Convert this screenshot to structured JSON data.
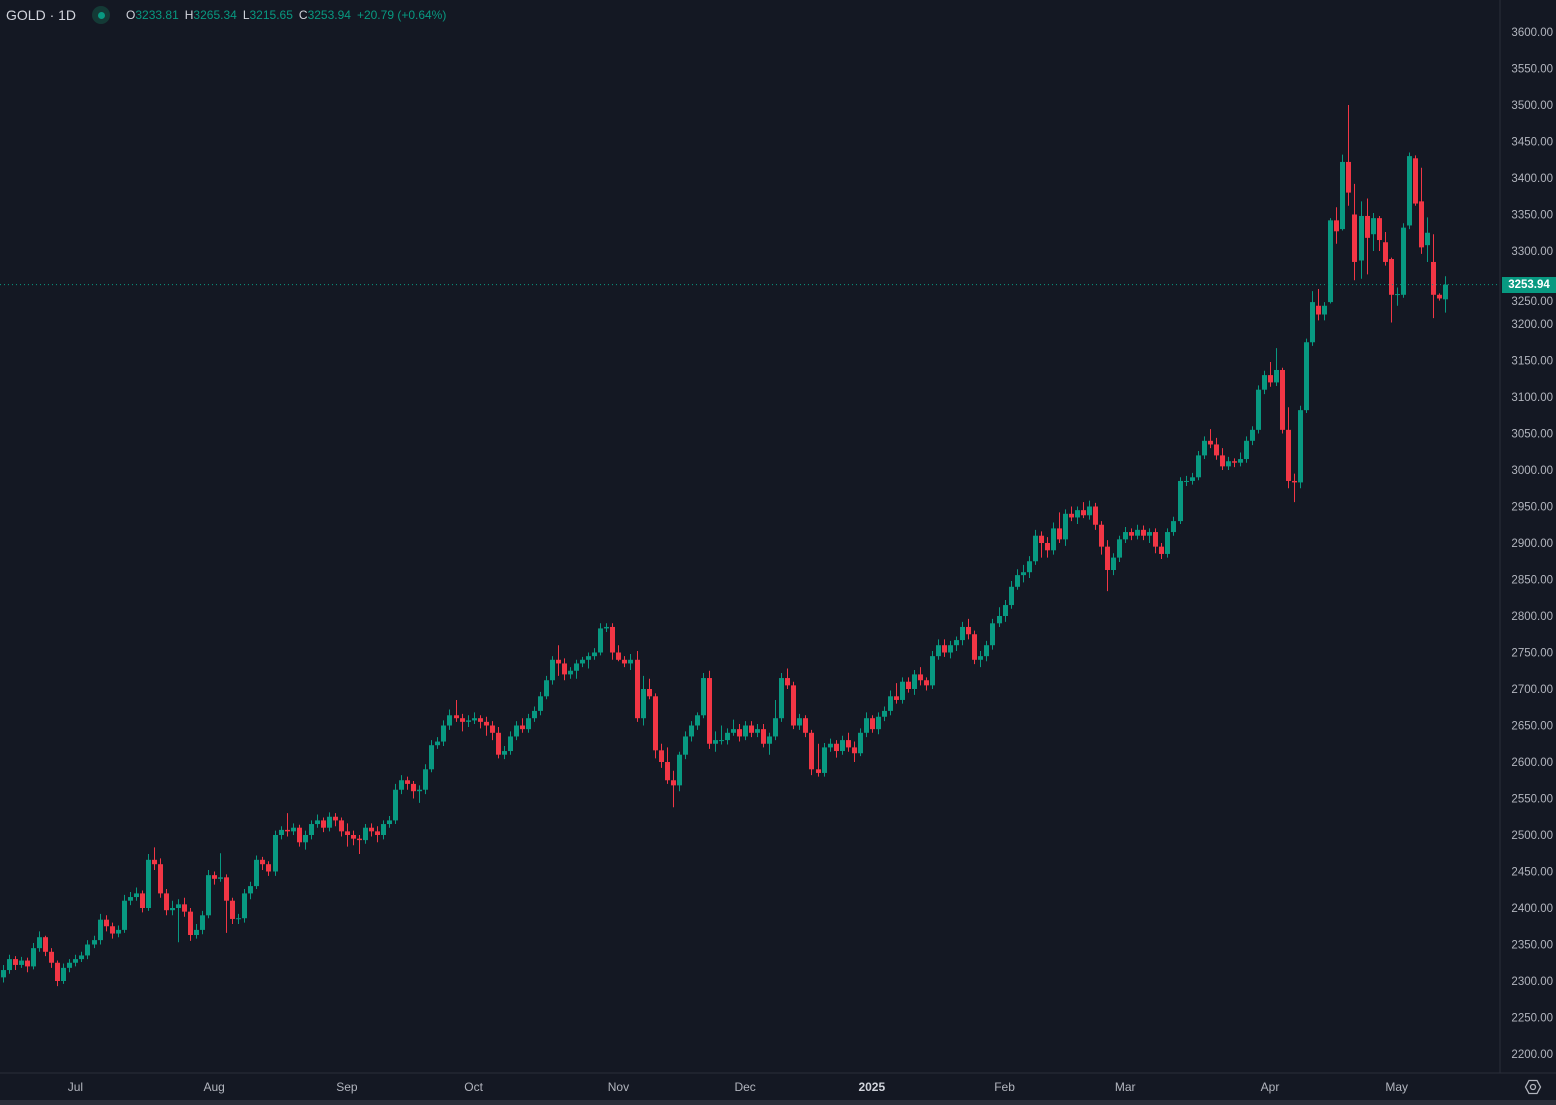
{
  "legend": {
    "symbol": "GOLD · 1D",
    "o_label": "O",
    "open": "3233.81",
    "h_label": "H",
    "high": "3265.34",
    "l_label": "L",
    "low": "3215.65",
    "c_label": "C",
    "close": "3253.94",
    "change": "+20.79 (+0.64%)"
  },
  "current_price": "3253.94",
  "colors": {
    "background": "#141823",
    "up": "#089981",
    "down": "#f23645",
    "axis_text": "#b2b5be"
  },
  "icons": {
    "settings": "gear-icon",
    "status": "market-open-dot-icon"
  },
  "chart_data": {
    "type": "candlestick",
    "title": "GOLD · 1D",
    "ylim": [
      2180,
      3625
    ],
    "y_ticks": [
      "3600.00",
      "3550.00",
      "3500.00",
      "3450.00",
      "3400.00",
      "3350.00",
      "3300.00",
      "3250.00",
      "3200.00",
      "3150.00",
      "3100.00",
      "3050.00",
      "3000.00",
      "2950.00",
      "2900.00",
      "2850.00",
      "2800.00",
      "2750.00",
      "2700.00",
      "2650.00",
      "2600.00",
      "2550.00",
      "2500.00",
      "2450.00",
      "2400.00",
      "2350.00",
      "2300.00",
      "2250.00",
      "2200.00"
    ],
    "x_ticks": [
      {
        "label": "Jul",
        "index": 12
      },
      {
        "label": "Aug",
        "index": 35
      },
      {
        "label": "Sep",
        "index": 57
      },
      {
        "label": "Oct",
        "index": 78
      },
      {
        "label": "Nov",
        "index": 102
      },
      {
        "label": "Dec",
        "index": 123
      },
      {
        "label": "2025",
        "index": 144,
        "bold": true
      },
      {
        "label": "Feb",
        "index": 166
      },
      {
        "label": "Mar",
        "index": 186
      },
      {
        "label": "Apr",
        "index": 210
      },
      {
        "label": "May",
        "index": 231
      }
    ],
    "ohlc_order": [
      "open",
      "high",
      "low",
      "close"
    ],
    "candles": [
      [
        2305,
        2322,
        2298,
        2315
      ],
      [
        2315,
        2336,
        2310,
        2330
      ],
      [
        2330,
        2334,
        2315,
        2322
      ],
      [
        2322,
        2333,
        2318,
        2328
      ],
      [
        2328,
        2332,
        2312,
        2320
      ],
      [
        2320,
        2352,
        2316,
        2345
      ],
      [
        2345,
        2368,
        2340,
        2360
      ],
      [
        2360,
        2362,
        2334,
        2340
      ],
      [
        2340,
        2345,
        2318,
        2325
      ],
      [
        2325,
        2328,
        2293,
        2300
      ],
      [
        2300,
        2324,
        2296,
        2318
      ],
      [
        2318,
        2330,
        2312,
        2325
      ],
      [
        2325,
        2336,
        2320,
        2330
      ],
      [
        2330,
        2340,
        2326,
        2335
      ],
      [
        2335,
        2356,
        2330,
        2350
      ],
      [
        2350,
        2362,
        2345,
        2356
      ],
      [
        2356,
        2392,
        2350,
        2384
      ],
      [
        2384,
        2390,
        2368,
        2375
      ],
      [
        2375,
        2380,
        2358,
        2365
      ],
      [
        2365,
        2376,
        2360,
        2370
      ],
      [
        2370,
        2418,
        2366,
        2410
      ],
      [
        2410,
        2422,
        2404,
        2415
      ],
      [
        2415,
        2428,
        2410,
        2420
      ],
      [
        2420,
        2424,
        2394,
        2400
      ],
      [
        2400,
        2474,
        2396,
        2466
      ],
      [
        2466,
        2483,
        2452,
        2460
      ],
      [
        2460,
        2468,
        2414,
        2420
      ],
      [
        2420,
        2426,
        2390,
        2397
      ],
      [
        2397,
        2410,
        2390,
        2400
      ],
      [
        2400,
        2412,
        2353,
        2405
      ],
      [
        2405,
        2414,
        2388,
        2395
      ],
      [
        2395,
        2400,
        2355,
        2363
      ],
      [
        2363,
        2378,
        2358,
        2370
      ],
      [
        2370,
        2396,
        2364,
        2390
      ],
      [
        2390,
        2452,
        2386,
        2445
      ],
      [
        2445,
        2450,
        2432,
        2440
      ],
      [
        2440,
        2475,
        2436,
        2442
      ],
      [
        2442,
        2446,
        2366,
        2410
      ],
      [
        2410,
        2414,
        2378,
        2385
      ],
      [
        2385,
        2392,
        2378,
        2386
      ],
      [
        2386,
        2426,
        2380,
        2420
      ],
      [
        2420,
        2436,
        2412,
        2430
      ],
      [
        2430,
        2472,
        2426,
        2466
      ],
      [
        2466,
        2470,
        2452,
        2460
      ],
      [
        2460,
        2464,
        2444,
        2450
      ],
      [
        2450,
        2506,
        2444,
        2500
      ],
      [
        2500,
        2512,
        2494,
        2507
      ],
      [
        2507,
        2530,
        2498,
        2505
      ],
      [
        2505,
        2516,
        2500,
        2510
      ],
      [
        2510,
        2514,
        2484,
        2490
      ],
      [
        2490,
        2506,
        2480,
        2500
      ],
      [
        2500,
        2520,
        2494,
        2515
      ],
      [
        2515,
        2528,
        2510,
        2520
      ],
      [
        2520,
        2524,
        2504,
        2510
      ],
      [
        2510,
        2531,
        2505,
        2525
      ],
      [
        2525,
        2530,
        2512,
        2520
      ],
      [
        2520,
        2524,
        2498,
        2505
      ],
      [
        2505,
        2516,
        2484,
        2500
      ],
      [
        2500,
        2506,
        2486,
        2495
      ],
      [
        2495,
        2500,
        2474,
        2493
      ],
      [
        2493,
        2515,
        2488,
        2510
      ],
      [
        2510,
        2516,
        2498,
        2505
      ],
      [
        2505,
        2512,
        2490,
        2500
      ],
      [
        2500,
        2520,
        2494,
        2515
      ],
      [
        2515,
        2526,
        2510,
        2520
      ],
      [
        2520,
        2570,
        2515,
        2562
      ],
      [
        2562,
        2582,
        2556,
        2575
      ],
      [
        2575,
        2580,
        2562,
        2570
      ],
      [
        2570,
        2574,
        2550,
        2560
      ],
      [
        2560,
        2568,
        2544,
        2562
      ],
      [
        2562,
        2597,
        2556,
        2590
      ],
      [
        2590,
        2630,
        2586,
        2623
      ],
      [
        2623,
        2634,
        2618,
        2628
      ],
      [
        2628,
        2657,
        2622,
        2650
      ],
      [
        2650,
        2672,
        2644,
        2664
      ],
      [
        2664,
        2685,
        2655,
        2660
      ],
      [
        2660,
        2666,
        2642,
        2655
      ],
      [
        2655,
        2664,
        2648,
        2657
      ],
      [
        2657,
        2668,
        2652,
        2660
      ],
      [
        2660,
        2664,
        2646,
        2655
      ],
      [
        2655,
        2662,
        2636,
        2650
      ],
      [
        2650,
        2656,
        2630,
        2640
      ],
      [
        2640,
        2648,
        2605,
        2610
      ],
      [
        2610,
        2622,
        2604,
        2615
      ],
      [
        2615,
        2642,
        2610,
        2635
      ],
      [
        2635,
        2656,
        2630,
        2650
      ],
      [
        2650,
        2660,
        2640,
        2645
      ],
      [
        2645,
        2666,
        2640,
        2660
      ],
      [
        2660,
        2676,
        2655,
        2670
      ],
      [
        2670,
        2696,
        2664,
        2690
      ],
      [
        2690,
        2718,
        2686,
        2712
      ],
      [
        2712,
        2745,
        2706,
        2740
      ],
      [
        2740,
        2760,
        2718,
        2735
      ],
      [
        2735,
        2742,
        2712,
        2720
      ],
      [
        2720,
        2730,
        2714,
        2725
      ],
      [
        2725,
        2740,
        2714,
        2735
      ],
      [
        2735,
        2744,
        2730,
        2740
      ],
      [
        2740,
        2750,
        2728,
        2745
      ],
      [
        2745,
        2756,
        2740,
        2750
      ],
      [
        2750,
        2790,
        2746,
        2783
      ],
      [
        2783,
        2790,
        2778,
        2785
      ],
      [
        2785,
        2790,
        2740,
        2750
      ],
      [
        2750,
        2760,
        2738,
        2740
      ],
      [
        2740,
        2745,
        2730,
        2735
      ],
      [
        2735,
        2748,
        2726,
        2740
      ],
      [
        2740,
        2752,
        2655,
        2660
      ],
      [
        2660,
        2718,
        2650,
        2700
      ],
      [
        2700,
        2714,
        2686,
        2690
      ],
      [
        2690,
        2694,
        2605,
        2616
      ],
      [
        2616,
        2625,
        2592,
        2600
      ],
      [
        2600,
        2620,
        2570,
        2575
      ],
      [
        2575,
        2588,
        2538,
        2568
      ],
      [
        2568,
        2614,
        2560,
        2610
      ],
      [
        2610,
        2642,
        2604,
        2635
      ],
      [
        2635,
        2656,
        2628,
        2650
      ],
      [
        2650,
        2668,
        2644,
        2664
      ],
      [
        2664,
        2722,
        2660,
        2715
      ],
      [
        2715,
        2725,
        2618,
        2625
      ],
      [
        2625,
        2642,
        2614,
        2630
      ],
      [
        2630,
        2650,
        2624,
        2630
      ],
      [
        2630,
        2646,
        2624,
        2640
      ],
      [
        2640,
        2658,
        2636,
        2645
      ],
      [
        2645,
        2652,
        2628,
        2635
      ],
      [
        2635,
        2656,
        2630,
        2650
      ],
      [
        2650,
        2656,
        2634,
        2640
      ],
      [
        2640,
        2652,
        2634,
        2645
      ],
      [
        2645,
        2652,
        2620,
        2625
      ],
      [
        2625,
        2640,
        2610,
        2635
      ],
      [
        2635,
        2685,
        2630,
        2660
      ],
      [
        2660,
        2722,
        2655,
        2715
      ],
      [
        2715,
        2728,
        2700,
        2705
      ],
      [
        2705,
        2710,
        2645,
        2650
      ],
      [
        2650,
        2666,
        2644,
        2660
      ],
      [
        2660,
        2664,
        2634,
        2640
      ],
      [
        2640,
        2644,
        2582,
        2590
      ],
      [
        2590,
        2625,
        2580,
        2585
      ],
      [
        2585,
        2626,
        2580,
        2620
      ],
      [
        2620,
        2632,
        2614,
        2625
      ],
      [
        2625,
        2630,
        2606,
        2615
      ],
      [
        2615,
        2636,
        2610,
        2630
      ],
      [
        2630,
        2640,
        2614,
        2620
      ],
      [
        2620,
        2628,
        2600,
        2612
      ],
      [
        2612,
        2646,
        2608,
        2640
      ],
      [
        2640,
        2668,
        2634,
        2660
      ],
      [
        2660,
        2664,
        2640,
        2645
      ],
      [
        2645,
        2668,
        2638,
        2662
      ],
      [
        2662,
        2676,
        2656,
        2670
      ],
      [
        2670,
        2698,
        2664,
        2690
      ],
      [
        2690,
        2708,
        2680,
        2685
      ],
      [
        2685,
        2716,
        2680,
        2710
      ],
      [
        2710,
        2716,
        2695,
        2700
      ],
      [
        2700,
        2726,
        2692,
        2720
      ],
      [
        2720,
        2730,
        2705,
        2712
      ],
      [
        2712,
        2716,
        2698,
        2705
      ],
      [
        2705,
        2752,
        2700,
        2745
      ],
      [
        2745,
        2768,
        2740,
        2760
      ],
      [
        2760,
        2768,
        2744,
        2750
      ],
      [
        2750,
        2766,
        2742,
        2760
      ],
      [
        2760,
        2772,
        2752,
        2767
      ],
      [
        2767,
        2792,
        2760,
        2785
      ],
      [
        2785,
        2796,
        2768,
        2775
      ],
      [
        2775,
        2780,
        2734,
        2740
      ],
      [
        2740,
        2752,
        2730,
        2745
      ],
      [
        2745,
        2766,
        2738,
        2760
      ],
      [
        2760,
        2796,
        2754,
        2790
      ],
      [
        2790,
        2812,
        2785,
        2800
      ],
      [
        2800,
        2822,
        2792,
        2815
      ],
      [
        2815,
        2848,
        2810,
        2840
      ],
      [
        2840,
        2864,
        2836,
        2856
      ],
      [
        2856,
        2870,
        2846,
        2860
      ],
      [
        2860,
        2882,
        2852,
        2875
      ],
      [
        2875,
        2918,
        2870,
        2910
      ],
      [
        2910,
        2916,
        2880,
        2900
      ],
      [
        2900,
        2908,
        2880,
        2890
      ],
      [
        2890,
        2928,
        2884,
        2920
      ],
      [
        2920,
        2942,
        2900,
        2905
      ],
      [
        2905,
        2946,
        2896,
        2940
      ],
      [
        2940,
        2950,
        2930,
        2935
      ],
      [
        2935,
        2950,
        2926,
        2945
      ],
      [
        2945,
        2956,
        2934,
        2938
      ],
      [
        2938,
        2958,
        2932,
        2950
      ],
      [
        2950,
        2955,
        2918,
        2925
      ],
      [
        2925,
        2930,
        2884,
        2895
      ],
      [
        2895,
        2904,
        2834,
        2863
      ],
      [
        2863,
        2886,
        2856,
        2880
      ],
      [
        2880,
        2910,
        2874,
        2905
      ],
      [
        2905,
        2922,
        2900,
        2915
      ],
      [
        2915,
        2920,
        2904,
        2910
      ],
      [
        2910,
        2925,
        2905,
        2918
      ],
      [
        2918,
        2924,
        2904,
        2910
      ],
      [
        2910,
        2920,
        2900,
        2915
      ],
      [
        2915,
        2920,
        2886,
        2895
      ],
      [
        2895,
        2900,
        2878,
        2885
      ],
      [
        2885,
        2920,
        2880,
        2915
      ],
      [
        2915,
        2936,
        2910,
        2930
      ],
      [
        2930,
        2990,
        2926,
        2985
      ],
      [
        2985,
        2992,
        2978,
        2985
      ],
      [
        2985,
        2996,
        2980,
        2990
      ],
      [
        2990,
        3026,
        2986,
        3020
      ],
      [
        3020,
        3046,
        3015,
        3040
      ],
      [
        3040,
        3056,
        3030,
        3035
      ],
      [
        3035,
        3044,
        3014,
        3020
      ],
      [
        3020,
        3030,
        3000,
        3005
      ],
      [
        3005,
        3018,
        3000,
        3012
      ],
      [
        3012,
        3016,
        3004,
        3010
      ],
      [
        3010,
        3024,
        3005,
        3015
      ],
      [
        3015,
        3046,
        3010,
        3040
      ],
      [
        3040,
        3060,
        3034,
        3055
      ],
      [
        3055,
        3116,
        3050,
        3110
      ],
      [
        3110,
        3136,
        3104,
        3130
      ],
      [
        3130,
        3148,
        3114,
        3120
      ],
      [
        3120,
        3167,
        3115,
        3137
      ],
      [
        3137,
        3140,
        3050,
        3055
      ],
      [
        3055,
        3086,
        2975,
        2985
      ],
      [
        2985,
        2995,
        2956,
        2983
      ],
      [
        2983,
        3088,
        2975,
        3082
      ],
      [
        3082,
        3180,
        3078,
        3175
      ],
      [
        3175,
        3245,
        3170,
        3230
      ],
      [
        3225,
        3248,
        3205,
        3213
      ],
      [
        3213,
        3230,
        3205,
        3225
      ],
      [
        3230,
        3345,
        3228,
        3342
      ],
      [
        3342,
        3360,
        3310,
        3327
      ],
      [
        3330,
        3432,
        3328,
        3422
      ],
      [
        3422,
        3500,
        3362,
        3380
      ],
      [
        3350,
        3392,
        3260,
        3285
      ],
      [
        3287,
        3368,
        3262,
        3348
      ],
      [
        3348,
        3372,
        3268,
        3318
      ],
      [
        3323,
        3352,
        3300,
        3345
      ],
      [
        3345,
        3348,
        3300,
        3315
      ],
      [
        3312,
        3326,
        3280,
        3285
      ],
      [
        3289,
        3291,
        3202,
        3240
      ],
      [
        3240,
        3250,
        3225,
        3241
      ],
      [
        3240,
        3338,
        3236,
        3332
      ],
      [
        3335,
        3435,
        3330,
        3430
      ],
      [
        3427,
        3431,
        3362,
        3365
      ],
      [
        3368,
        3414,
        3296,
        3305
      ],
      [
        3308,
        3346,
        3285,
        3325
      ],
      [
        3285,
        3323,
        3208,
        3240
      ],
      [
        3240,
        3242,
        3232,
        3235
      ],
      [
        3233.81,
        3265.34,
        3215.65,
        3253.94
      ]
    ]
  }
}
